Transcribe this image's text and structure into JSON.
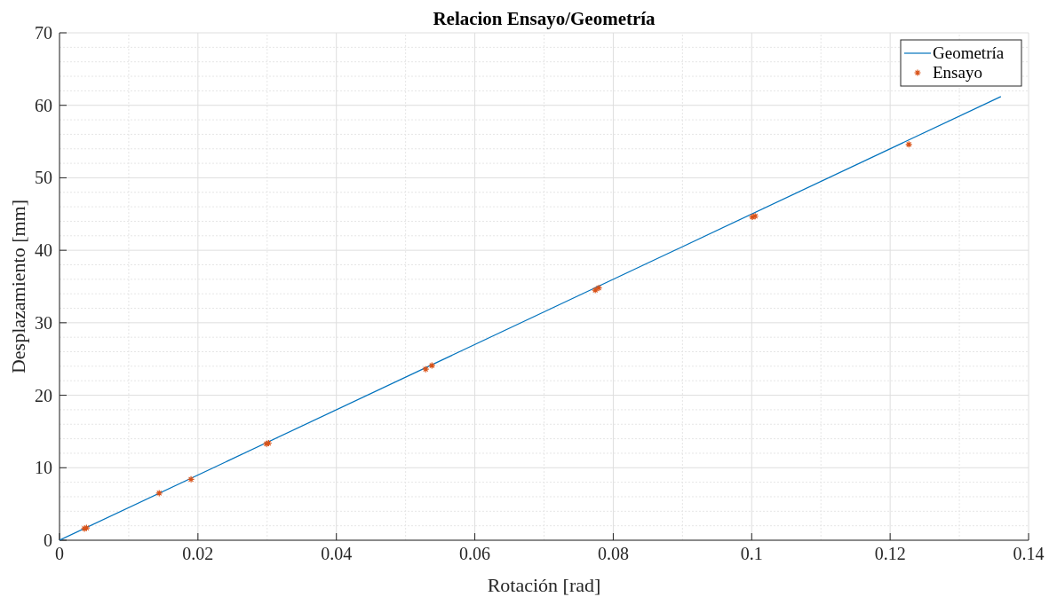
{
  "chart_data": {
    "type": "line",
    "title": "Relacion Ensayo/Geometría",
    "xlabel": "Rotación [rad]",
    "ylabel": "Desplazamiento [mm]",
    "xlim": [
      0,
      0.14
    ],
    "xticks": [
      0,
      0.02,
      0.04,
      0.06,
      0.08,
      0.1,
      0.12,
      0.14
    ],
    "ylim": [
      0,
      70
    ],
    "yticks": [
      0,
      10,
      20,
      30,
      40,
      50,
      60,
      70
    ],
    "grid": true,
    "legend": "top right",
    "series": [
      {
        "name": "Geometría",
        "color": "#0072bd",
        "x": [
          0,
          0.136
        ],
        "values": [
          0,
          61.2
        ],
        "marker": "none",
        "line_style": "solid"
      },
      {
        "name": "Ensayo",
        "type": "scatter",
        "color": "#d95319",
        "marker": "cross",
        "x": [
          0.0036,
          0.0039,
          0.0144,
          0.019,
          0.0299,
          0.0302,
          0.0529,
          0.0538,
          0.0774,
          0.0779,
          0.1001,
          0.1005,
          0.1227
        ],
        "values": [
          1.6,
          1.7,
          6.5,
          8.4,
          13.3,
          13.4,
          23.6,
          24.1,
          34.5,
          34.8,
          44.6,
          44.7,
          54.6
        ]
      }
    ]
  }
}
